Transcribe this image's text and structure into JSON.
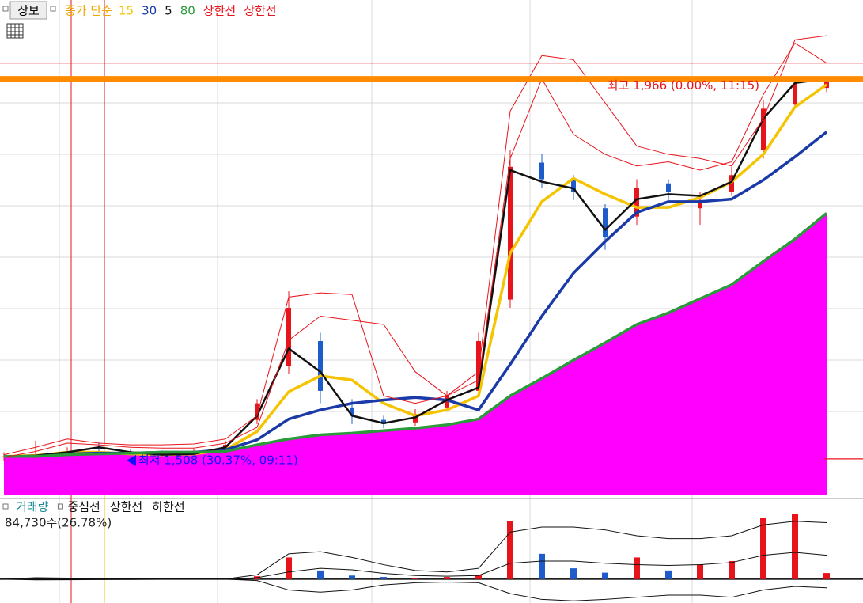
{
  "button": "상보",
  "chart_data": [
    {
      "type": "candlestick",
      "legend_prefix": "종가 단순",
      "legend_prefix_color": "#f0a800",
      "categories": [
        null,
        null,
        null,
        null,
        null,
        null,
        null,
        null,
        null,
        null,
        null,
        null,
        null,
        null,
        null,
        null,
        null,
        null,
        null,
        null,
        null,
        null,
        null,
        null,
        null,
        null,
        null
      ],
      "ylim": [
        1465,
        2061
      ],
      "up_color": "#e8141c",
      "down_color": "#1e5ccc",
      "candles": {
        "open": [
          1510,
          1511,
          1515,
          1522,
          1517,
          1515,
          1514,
          1518,
          1555,
          1620,
          1650,
          1570,
          1555,
          1552,
          1570,
          1590,
          1700,
          1865,
          1845,
          1810,
          1800,
          1840,
          1810,
          1830,
          1880,
          1935,
          1955
        ],
        "high": [
          1516,
          1530,
          1522,
          1528,
          1520,
          1518,
          1520,
          1530,
          1580,
          1710,
          1660,
          1580,
          1560,
          1568,
          1590,
          1660,
          1880,
          1875,
          1850,
          1815,
          1845,
          1845,
          1830,
          1860,
          1940,
          1966,
          1966
        ],
        "low": [
          1506,
          1508,
          1512,
          1515,
          1512,
          1510,
          1511,
          1515,
          1550,
          1610,
          1575,
          1550,
          1545,
          1548,
          1565,
          1585,
          1690,
          1835,
          1820,
          1760,
          1790,
          1820,
          1790,
          1825,
          1870,
          1930,
          1950
        ],
        "close": [
          1511,
          1513,
          1517,
          1520,
          1515,
          1514,
          1516,
          1525,
          1575,
          1690,
          1590,
          1560,
          1550,
          1562,
          1585,
          1650,
          1860,
          1845,
          1830,
          1775,
          1835,
          1830,
          1820,
          1850,
          1930,
          1960,
          1966
        ]
      },
      "series": [
        {
          "name": "15",
          "color": "#f5c400",
          "width": 3.5,
          "values": [
            1511,
            1512,
            1516,
            1516,
            1514,
            1513,
            1514,
            1519,
            1541,
            1589,
            1608,
            1603,
            1575,
            1560,
            1567,
            1584,
            1756,
            1818,
            1846,
            1827,
            1811,
            1811,
            1823,
            1842,
            1875,
            1932,
            1959
          ]
        },
        {
          "name": "30",
          "color": "#1a3aa8",
          "width": 3.5,
          "values": [
            1511,
            1511,
            1514,
            1515,
            1515,
            1516,
            1516,
            1519,
            1531,
            1556,
            1567,
            1575,
            1579,
            1582,
            1579,
            1567,
            1622,
            1680,
            1732,
            1770,
            1805,
            1818,
            1818,
            1821,
            1844,
            1872,
            1902
          ]
        },
        {
          "name": "5",
          "color": "#111111",
          "width": 2.5,
          "values": [
            1511,
            1512,
            1516,
            1522,
            1516,
            1513,
            1514,
            1522,
            1560,
            1641,
            1613,
            1560,
            1551,
            1558,
            1579,
            1594,
            1856,
            1842,
            1834,
            1784,
            1821,
            1827,
            1825,
            1842,
            1918,
            1961,
            1966
          ]
        },
        {
          "name": "80",
          "color": "#2a9a3a",
          "width": 3.5,
          "fill": "#ff00ff",
          "values": [
            1511,
            1511,
            1513,
            1514,
            1515,
            1516,
            1516,
            1517,
            1525,
            1532,
            1537,
            1539,
            1542,
            1545,
            1549,
            1556,
            1584,
            1605,
            1627,
            1648,
            1670,
            1684,
            1701,
            1718,
            1746,
            1773,
            1804
          ]
        },
        {
          "name": "상한선",
          "color": "#e8141c",
          "width": 1,
          "values": [
            1513,
            1522,
            1532,
            1527,
            1525,
            1525,
            1526,
            1532,
            1560,
            1703,
            1708,
            1706,
            1584,
            1575,
            1584,
            1603,
            1870,
            1966,
            1899,
            1875,
            1861,
            1866,
            1856,
            1866,
            1947,
            2009,
            1985
          ]
        },
        {
          "name": "상한선",
          "color": "#e8141c",
          "width": 1,
          "values": [
            1510,
            1517,
            1527,
            1525,
            1522,
            1521,
            1521,
            1527,
            1546,
            1651,
            1680,
            1675,
            1670,
            1613,
            1584,
            1613,
            1927,
            1994,
            1989,
            1937,
            1885,
            1875,
            1870,
            1861,
            1918,
            2013,
            2018
          ]
        }
      ],
      "annotations": [
        {
          "value": 1966,
          "label": "최고 1,966 (0.00%, 11:15)",
          "color": "#e8141c",
          "line_color": "#ff8c00"
        },
        {
          "value": 1508,
          "label": "최저 1,508 (30.37%, 09:11)",
          "color": "#1010ff",
          "line_color": "#e8141c"
        }
      ],
      "ref_lines": [
        {
          "value": 1985,
          "color": "#e8141c"
        }
      ]
    },
    {
      "type": "bar",
      "readout": "84,730주(26.78%)",
      "ylim": [
        -330000,
        950000
      ],
      "series": [
        {
          "name": "거래량",
          "color": "#1a8a9a",
          "values": [
            0,
            10000,
            5000,
            3000,
            0,
            0,
            0,
            0,
            40000,
            300000,
            120000,
            50000,
            30000,
            20000,
            30000,
            60000,
            800000,
            350000,
            150000,
            90000,
            300000,
            120000,
            200000,
            250000,
            850000,
            900000,
            84730
          ]
        },
        {
          "name": "중심선",
          "color": "#111111",
          "values": [
            0,
            3000,
            4000,
            4000,
            3000,
            2000,
            1000,
            500,
            20000,
            100000,
            150000,
            130000,
            80000,
            50000,
            40000,
            50000,
            220000,
            250000,
            250000,
            220000,
            200000,
            190000,
            200000,
            230000,
            330000,
            370000,
            330000
          ]
        },
        {
          "name": "상한선",
          "color": "#111111",
          "values": [
            0,
            20000,
            15000,
            12000,
            8000,
            5000,
            3000,
            2000,
            60000,
            350000,
            380000,
            300000,
            200000,
            120000,
            100000,
            150000,
            650000,
            720000,
            720000,
            680000,
            600000,
            560000,
            560000,
            600000,
            750000,
            800000,
            780000
          ]
        },
        {
          "name": "하한선",
          "color": "#111111",
          "values": [
            0,
            -10000,
            -8000,
            -6000,
            -4000,
            -2000,
            -1000,
            0,
            -20000,
            -150000,
            -180000,
            -150000,
            -80000,
            -50000,
            -40000,
            -50000,
            -200000,
            -280000,
            -300000,
            -280000,
            -250000,
            -220000,
            -220000,
            -250000,
            -150000,
            -100000,
            -120000
          ]
        }
      ]
    }
  ]
}
